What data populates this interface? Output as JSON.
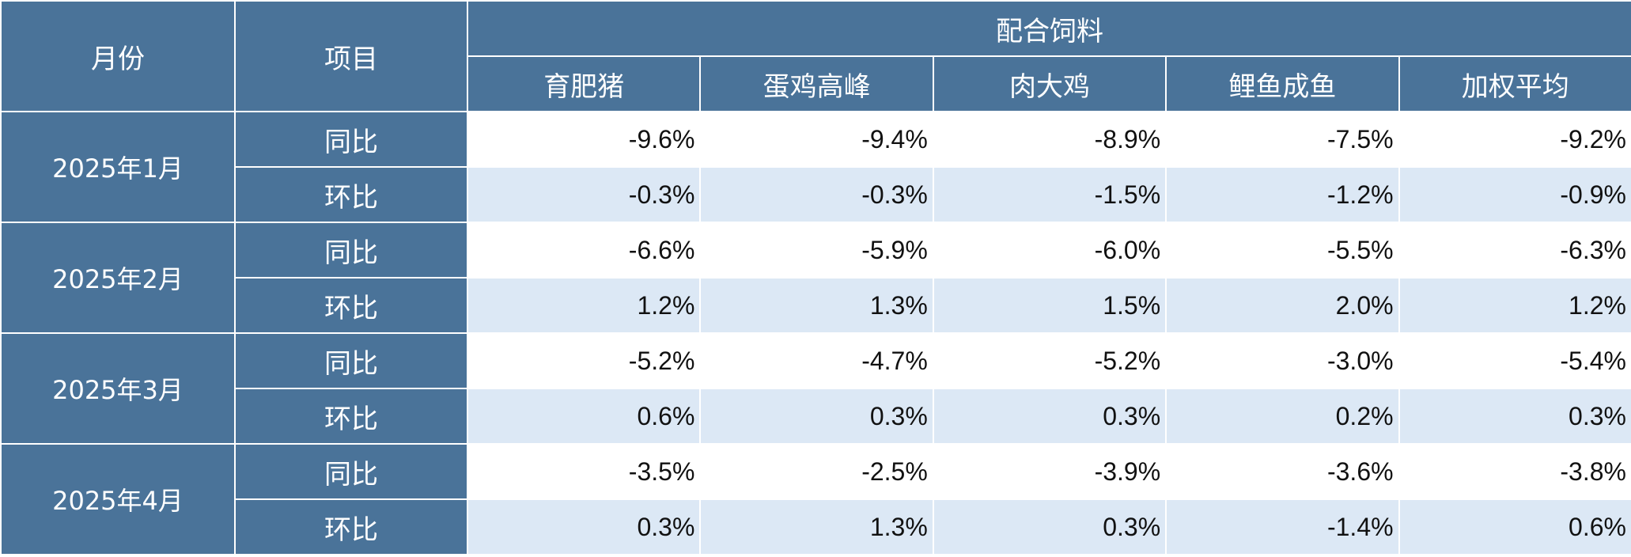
{
  "header": {
    "month_label": "月份",
    "item_label": "项目",
    "group_label": "配合饲料",
    "columns": [
      "育肥猪",
      "蛋鸡高峰",
      "肉大鸡",
      "鲤鱼成鱼",
      "加权平均"
    ]
  },
  "rows": [
    {
      "month": "2025年1月",
      "yoy": {
        "label": "同比",
        "values": [
          "-9.6%",
          "-9.4%",
          "-8.9%",
          "-7.5%",
          "-9.2%"
        ]
      },
      "mom": {
        "label": "环比",
        "values": [
          "-0.3%",
          "-0.3%",
          "-1.5%",
          "-1.2%",
          "-0.9%"
        ]
      }
    },
    {
      "month": "2025年2月",
      "yoy": {
        "label": "同比",
        "values": [
          "-6.6%",
          "-5.9%",
          "-6.0%",
          "-5.5%",
          "-6.3%"
        ]
      },
      "mom": {
        "label": "环比",
        "values": [
          "1.2%",
          "1.3%",
          "1.5%",
          "2.0%",
          "1.2%"
        ]
      }
    },
    {
      "month": "2025年3月",
      "yoy": {
        "label": "同比",
        "values": [
          "-5.2%",
          "-4.7%",
          "-5.2%",
          "-3.0%",
          "-5.4%"
        ]
      },
      "mom": {
        "label": "环比",
        "values": [
          "0.6%",
          "0.3%",
          "0.3%",
          "0.2%",
          "0.3%"
        ]
      }
    },
    {
      "month": "2025年4月",
      "yoy": {
        "label": "同比",
        "values": [
          "-3.5%",
          "-2.5%",
          "-3.9%",
          "-3.6%",
          "-3.8%"
        ]
      },
      "mom": {
        "label": "环比",
        "values": [
          "0.3%",
          "1.3%",
          "0.3%",
          "-1.4%",
          "0.6%"
        ]
      }
    }
  ],
  "colors": {
    "header_bg": "#4a7399",
    "header_text": "#ffffff",
    "alt_row_bg": "#dce8f5",
    "row_bg": "#ffffff"
  }
}
